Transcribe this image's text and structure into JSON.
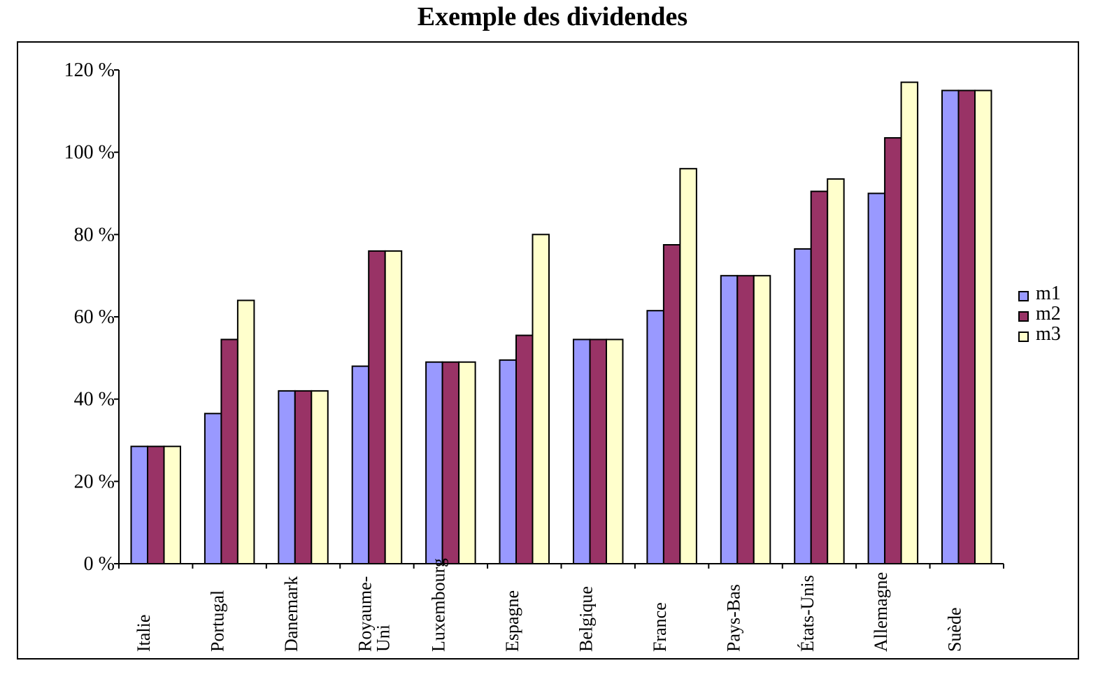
{
  "chart_data": {
    "type": "bar",
    "title": "Exemple des dividendes",
    "xlabel": "",
    "ylabel": "",
    "ylim": [
      0,
      120
    ],
    "yticks": [
      "0 %",
      "20 %",
      "40 %",
      "60 %",
      "80 %",
      "100 %",
      "120 %"
    ],
    "ytick_values": [
      0,
      20,
      40,
      60,
      80,
      100,
      120
    ],
    "categories": [
      [
        "Italie"
      ],
      [
        "Portugal"
      ],
      [
        "Danemark"
      ],
      [
        "Royaume-",
        "Uni"
      ],
      [
        "Luxembourg"
      ],
      [
        "Espagne"
      ],
      [
        "Belgique"
      ],
      [
        "France"
      ],
      [
        "Pays-Bas"
      ],
      [
        "États-Unis"
      ],
      [
        "Allemagne"
      ],
      [
        "Suède"
      ]
    ],
    "series": [
      {
        "name": "m1",
        "color": "#9999ff",
        "values": [
          28.5,
          36.5,
          42,
          48,
          49,
          49.5,
          54.5,
          61.5,
          70,
          76.5,
          90,
          115
        ]
      },
      {
        "name": "m2",
        "color": "#993366",
        "values": [
          28.5,
          54.5,
          42,
          76,
          49,
          55.5,
          54.5,
          77.5,
          70,
          90.5,
          103.5,
          115
        ]
      },
      {
        "name": "m3",
        "color": "#ffffcc",
        "values": [
          28.5,
          64,
          42,
          76,
          49,
          80,
          54.5,
          96,
          70,
          93.5,
          117,
          115
        ]
      }
    ],
    "legend_position": "right",
    "grid": false
  }
}
